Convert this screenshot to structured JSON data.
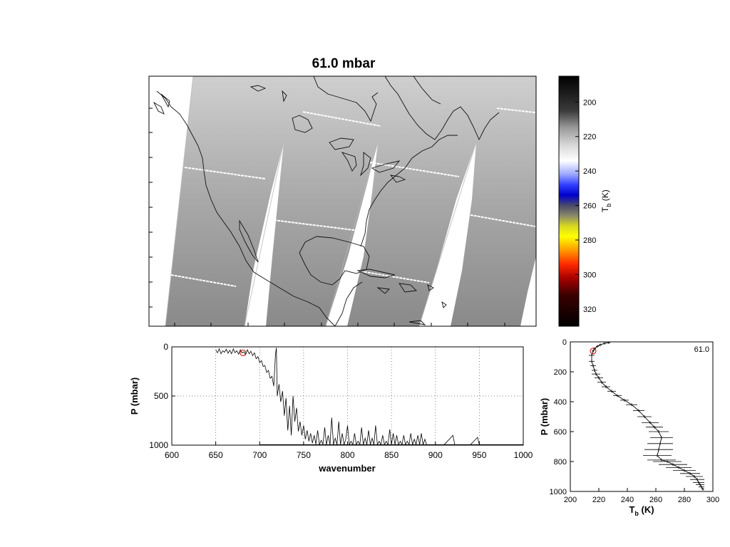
{
  "title": "61.0 mbar",
  "colors": {
    "axis": "#000000",
    "grid": "#555555",
    "marker": "#cc0000",
    "land": "#8a8a8a",
    "swath_gap": "#ffffff"
  },
  "chart_data": [
    {
      "type": "heatmap",
      "title": "61.0 mbar",
      "description_note": "",
      "colorbar": {
        "label_main": "T",
        "label_sub": "b",
        "label_unit": " (K)",
        "ticks": [
          200,
          220,
          240,
          260,
          280,
          300,
          320
        ],
        "range": [
          185,
          330
        ],
        "stops": [
          {
            "v": 185,
            "c": "#000000"
          },
          {
            "v": 205,
            "c": "#3a3a3a"
          },
          {
            "v": 215,
            "c": "#9a9a9a"
          },
          {
            "v": 225,
            "c": "#d8d8d8"
          },
          {
            "v": 234,
            "c": "#ffffff"
          },
          {
            "v": 242,
            "c": "#9aa6ff"
          },
          {
            "v": 248,
            "c": "#3040ff"
          },
          {
            "v": 254,
            "c": "#0000cc"
          },
          {
            "v": 260,
            "c": "#4a4a6a"
          },
          {
            "v": 266,
            "c": "#8a8a6a"
          },
          {
            "v": 272,
            "c": "#d8d820"
          },
          {
            "v": 278,
            "c": "#ffff00"
          },
          {
            "v": 286,
            "c": "#ff9900"
          },
          {
            "v": 294,
            "c": "#ff2a00"
          },
          {
            "v": 302,
            "c": "#aa0000"
          },
          {
            "v": 312,
            "c": "#3a0000"
          },
          {
            "v": 330,
            "c": "#000000"
          }
        ]
      }
    },
    {
      "type": "line",
      "xlabel": "wavenumber",
      "ylabel": "P (mbar)",
      "xlim": [
        600,
        1000
      ],
      "ylim": [
        1000,
        0
      ],
      "xticks": [
        600,
        650,
        700,
        750,
        800,
        850,
        900,
        950,
        1000
      ],
      "yticks": [
        0,
        500,
        1000
      ],
      "grid": true,
      "marker": {
        "x": 681,
        "y": 61
      },
      "series": [
        {
          "x": [
            650,
            652,
            654,
            656,
            658,
            660,
            662,
            664,
            666,
            668,
            670,
            672,
            674,
            676,
            678,
            680,
            682,
            684,
            686,
            688,
            690,
            692,
            694,
            696,
            698,
            700,
            702,
            704,
            706,
            708,
            710,
            712,
            714,
            716,
            718,
            719,
            720,
            722,
            724,
            726,
            728,
            730,
            732,
            734,
            736,
            738,
            740,
            742,
            744,
            746,
            748,
            750,
            752,
            754,
            756,
            758,
            760,
            762,
            764,
            766,
            768,
            770,
            772,
            774,
            776,
            778,
            780,
            782,
            784,
            786,
            788,
            790,
            792,
            794,
            796,
            798,
            800,
            802,
            804,
            806,
            808,
            810,
            812,
            814,
            816,
            818,
            820,
            822,
            824,
            826,
            828,
            830,
            832,
            834,
            836,
            838,
            840,
            842,
            844,
            846,
            848,
            850,
            852,
            854,
            856,
            858,
            860,
            862,
            864,
            866,
            868,
            870,
            872,
            874,
            876,
            878,
            880,
            882,
            884,
            886,
            888,
            890,
            900,
            910,
            920,
            922,
            924,
            930,
            940,
            948,
            950,
            952,
            960,
            980,
            1000
          ],
          "y": [
            30,
            60,
            20,
            70,
            40,
            55,
            25,
            65,
            35,
            70,
            20,
            60,
            40,
            75,
            30,
            61,
            50,
            80,
            30,
            70,
            45,
            90,
            60,
            120,
            100,
            160,
            140,
            200,
            190,
            260,
            240,
            320,
            300,
            400,
            80,
            10,
            500,
            380,
            560,
            450,
            700,
            520,
            850,
            600,
            900,
            500,
            760,
            620,
            860,
            760,
            900,
            800,
            940,
            850,
            960,
            880,
            980,
            900,
            990,
            850,
            995,
            950,
            990,
            820,
            995,
            900,
            995,
            720,
            995,
            930,
            995,
            760,
            995,
            880,
            995,
            940,
            800,
            995,
            960,
            995,
            880,
            995,
            960,
            995,
            820,
            995,
            930,
            995,
            850,
            995,
            930,
            995,
            800,
            995,
            960,
            995,
            900,
            995,
            960,
            995,
            840,
            995,
            880,
            995,
            900,
            995,
            960,
            995,
            900,
            995,
            960,
            995,
            880,
            995,
            940,
            995,
            900,
            995,
            880,
            995,
            940,
            995,
            995,
            995,
            900,
            995,
            995,
            995,
            995,
            920,
            995,
            995,
            995,
            995,
            995
          ]
        }
      ]
    },
    {
      "type": "line",
      "xlabel_main": "T",
      "xlabel_sub": "b",
      "xlabel_unit": " (K)",
      "ylabel": "P (mbar)",
      "xlim": [
        200,
        300
      ],
      "ylim": [
        1000,
        0
      ],
      "xticks": [
        200,
        220,
        240,
        260,
        280,
        300
      ],
      "yticks": [
        0,
        200,
        400,
        600,
        800,
        1000
      ],
      "annotation": "61.0",
      "marker": {
        "x": 216,
        "y": 61
      },
      "series": [
        {
          "x": [
            227,
            224,
            221,
            219,
            217,
            216,
            215,
            215,
            216,
            217,
            218,
            220,
            222,
            225,
            229,
            233,
            238,
            243,
            248,
            252,
            256,
            259,
            262,
            264,
            263,
            262,
            261,
            264,
            268,
            272,
            276,
            280,
            284,
            287,
            289,
            290,
            291,
            292,
            293
          ],
          "y": [
            5,
            10,
            20,
            30,
            45,
            61,
            90,
            130,
            160,
            190,
            215,
            240,
            270,
            300,
            330,
            360,
            390,
            420,
            460,
            500,
            540,
            570,
            600,
            640,
            680,
            720,
            760,
            790,
            800,
            820,
            840,
            860,
            880,
            900,
            920,
            940,
            955,
            970,
            985
          ],
          "err": [
            1,
            1,
            1,
            1,
            1,
            1,
            2,
            2,
            2,
            2,
            3,
            3,
            3,
            3,
            3,
            3,
            3,
            4,
            4,
            5,
            6,
            6,
            7,
            8,
            9,
            10,
            10,
            10,
            10,
            10,
            9,
            8,
            7,
            6,
            5,
            4,
            3,
            2,
            1
          ]
        }
      ]
    }
  ]
}
